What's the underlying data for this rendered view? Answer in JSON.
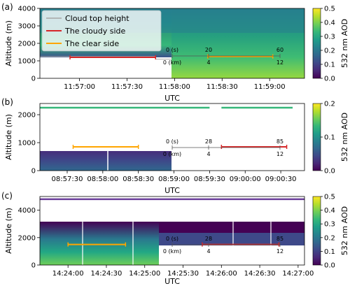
{
  "colors": {
    "cloudy": "#d62728",
    "clear": "#ffa500",
    "cloud_top": "#a6a6a6",
    "viridis": [
      "#440154",
      "#482878",
      "#3e4989",
      "#31688e",
      "#26828e",
      "#1f9e89",
      "#35b779",
      "#6ece58",
      "#b5de2b",
      "#fde725"
    ]
  },
  "chart_data": [
    {
      "type": "heatmap",
      "panel_label": "(a)",
      "title": "",
      "xlabel": "UTC",
      "ylabel": "Altitude (m)",
      "xlim": [
        "11:56:35",
        "11:59:22"
      ],
      "ylim": [
        0,
        4000
      ],
      "xticks": [
        "11:57:00",
        "11:57:30",
        "11:58:00",
        "11:58:30",
        "11:59:00"
      ],
      "yticks": [
        0,
        1000,
        2000,
        3000,
        4000
      ],
      "colorbar": {
        "label": "532 nm AOD",
        "min": 0.0,
        "max": 0.5,
        "ticks": [
          "0.0",
          "0.1",
          "0.2",
          "0.3",
          "0.4",
          "0.5"
        ]
      },
      "legend": {
        "position": "top-left",
        "entries": [
          "Cloud top height",
          "The cloudy side",
          "The clear side"
        ]
      },
      "cloud_top_height": [
        {
          "x": [
            "11:56:35",
            "11:57:48"
          ],
          "y": 1250
        },
        {
          "x": [
            "11:57:48",
            "11:57:58"
          ],
          "y": 1100
        }
      ],
      "cloudy_side": {
        "x": [
          "11:56:54",
          "11:57:48"
        ],
        "y": 1200
      },
      "clear_side": {
        "x": [
          "11:58:21",
          "11:59:02"
        ],
        "y": 1250
      },
      "aod_field": {
        "description_levels": "aod 0.15 near ground to 0.4 near 1000 m, high-altitude layer ~0.3"
      },
      "scale_annotation": {
        "seconds": [
          "0 (s)",
          "20",
          "60"
        ],
        "km": [
          "0 (km)",
          "4",
          "12"
        ]
      }
    },
    {
      "type": "heatmap",
      "panel_label": "(b)",
      "title": "",
      "xlabel": "UTC",
      "ylabel": "Altitude (m)",
      "xlim": [
        "08:57:07",
        "09:00:50"
      ],
      "ylim": [
        0,
        2400
      ],
      "xticks": [
        "08:57:30",
        "08:58:00",
        "08:58:30",
        "08:59:00",
        "08:59:30",
        "09:00:00",
        "09:00:30"
      ],
      "yticks": [
        0,
        1000,
        2000
      ],
      "colorbar": {
        "label": "532 nm AOD",
        "min": 0.0,
        "max": 0.2,
        "ticks": [
          "0.0",
          "0.1",
          "0.2"
        ]
      },
      "cloud_top_height": [
        {
          "x": [
            "08:57:07",
            "08:59:30"
          ],
          "y": 2250
        },
        {
          "x": [
            "08:59:40",
            "09:00:40"
          ],
          "y": 2250
        }
      ],
      "cloudy_side": {
        "x": [
          "08:59:40",
          "09:00:35"
        ],
        "y": 850
      },
      "clear_side": {
        "x": [
          "08:57:35",
          "08:58:30"
        ],
        "y": 850
      },
      "aod_field": {
        "description_levels": "aod ~0.0-0.05 below 700 m"
      },
      "scale_annotation": {
        "seconds": [
          "0 (s)",
          "28",
          "85"
        ],
        "km": [
          "0 (km)",
          "4",
          "12"
        ]
      }
    },
    {
      "type": "heatmap",
      "panel_label": "(c)",
      "title": "",
      "xlabel": "UTC",
      "ylabel": "Altitude (m)",
      "xlim": [
        "14:23:38",
        "14:27:05"
      ],
      "ylim": [
        0,
        5000
      ],
      "xticks": [
        "14:24:00",
        "14:24:30",
        "14:25:00",
        "14:25:30",
        "14:26:00",
        "14:26:30",
        "14:27:00"
      ],
      "yticks": [
        0,
        2000,
        4000
      ],
      "colorbar": {
        "label": "532 nm AOD",
        "min": 0.0,
        "max": 0.5,
        "ticks": [
          "0.0",
          "0.1",
          "0.2",
          "0.3",
          "0.4",
          "0.5"
        ]
      },
      "cloud_top_height": [
        {
          "x": [
            "14:23:38",
            "14:27:05"
          ],
          "y": 4800
        }
      ],
      "cloudy_side": {
        "x": [
          "14:25:45",
          "14:26:45"
        ],
        "y": 1500
      },
      "clear_side": {
        "x": [
          "14:24:00",
          "14:24:45"
        ],
        "y": 1500
      },
      "aod_field": {
        "description_levels": "aod ~0.3 near ground decreasing to ~0.0 near 3300 m"
      },
      "scale_annotation": {
        "seconds": [
          "0 (s)",
          "28",
          "85"
        ],
        "km": [
          "0 (km)",
          "4",
          "12"
        ]
      }
    }
  ]
}
